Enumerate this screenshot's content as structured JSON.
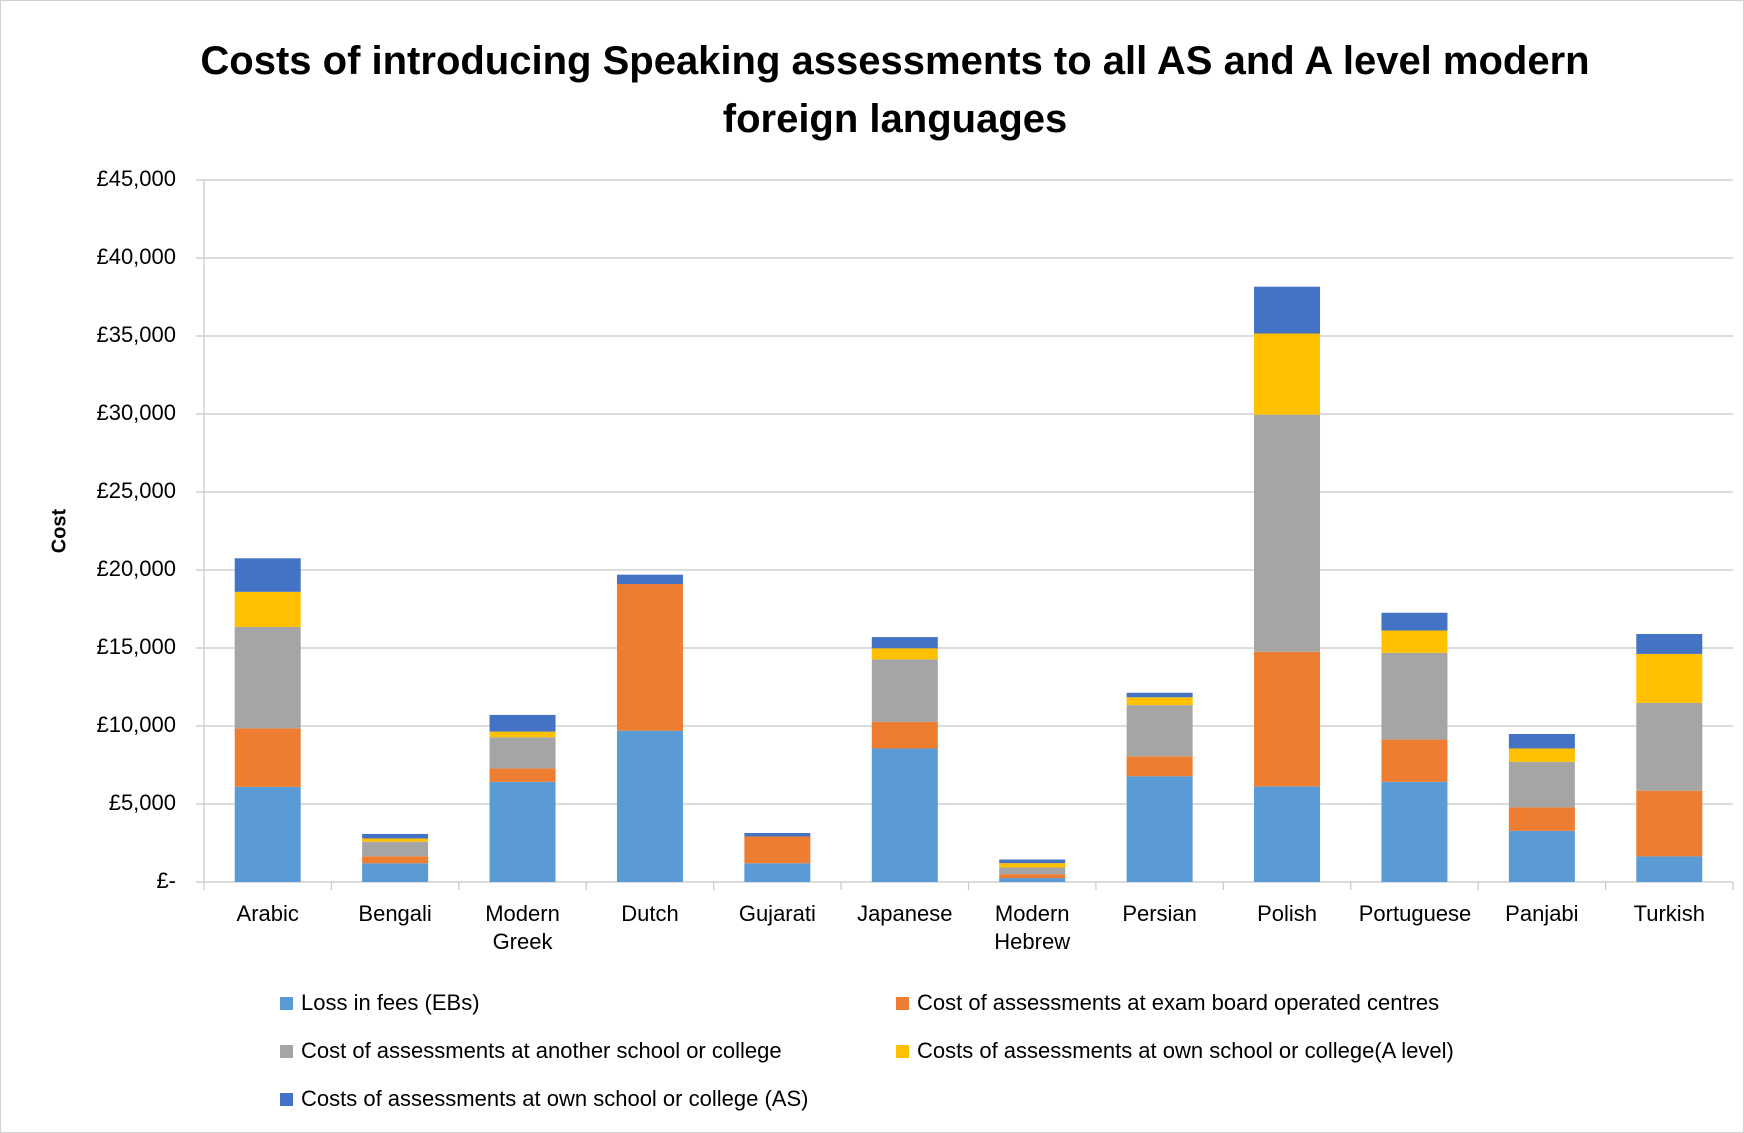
{
  "chart_data": {
    "type": "stacked_bar",
    "title": "Costs of introducing Speaking assessments to all AS and A level modern foreign languages",
    "y_label": "Cost",
    "categories": [
      "Arabic",
      "Bengali",
      "Modern Greek",
      "Dutch",
      "Gujarati",
      "Japanese",
      "Modern Hebrew",
      "Persian",
      "Polish",
      "Portuguese",
      "Panjabi",
      "Turkish"
    ],
    "series": [
      {
        "name": "Loss in fees (EBs)",
        "color": "#5b9bd5",
        "values": [
          6100,
          1200,
          6420,
          9700,
          1200,
          8560,
          250,
          6780,
          6130,
          6420,
          3280,
          1640
        ]
      },
      {
        "name": "Cost of assessments at exam board operated centres",
        "color": "#ed7d31",
        "values": [
          3750,
          450,
          860,
          9400,
          1720,
          1710,
          250,
          1280,
          8630,
          2710,
          1500,
          4210
        ]
      },
      {
        "name": "Cost of assessments at another school or college",
        "color": "#a5a5a5",
        "values": [
          6500,
          930,
          2000,
          0,
          0,
          4000,
          430,
          3280,
          15200,
          5560,
          2920,
          5630
        ]
      },
      {
        "name": "Costs of assessments at own school or college(A level)",
        "color": "#ffc000",
        "values": [
          2250,
          210,
          360,
          0,
          0,
          710,
          280,
          500,
          5200,
          1430,
          860,
          3140
        ]
      },
      {
        "name": "Costs of assessments at own school or college (AS)",
        "color": "#4472c4",
        "values": [
          2150,
          290,
          1070,
          600,
          220,
          720,
          230,
          290,
          3000,
          1140,
          930,
          1280
        ]
      }
    ],
    "ylim": [
      0,
      45000
    ],
    "yticks": [
      {
        "value": 0,
        "label": "£-"
      },
      {
        "value": 5000,
        "label": "£5,000"
      },
      {
        "value": 10000,
        "label": "£10,000"
      },
      {
        "value": 15000,
        "label": "£15,000"
      },
      {
        "value": 20000,
        "label": "£20,000"
      },
      {
        "value": 25000,
        "label": "£25,000"
      },
      {
        "value": 30000,
        "label": "£30,000"
      },
      {
        "value": 35000,
        "label": "£35,000"
      },
      {
        "value": 40000,
        "label": "£40,000"
      },
      {
        "value": 45000,
        "label": "£45,000"
      }
    ],
    "grid": true
  }
}
